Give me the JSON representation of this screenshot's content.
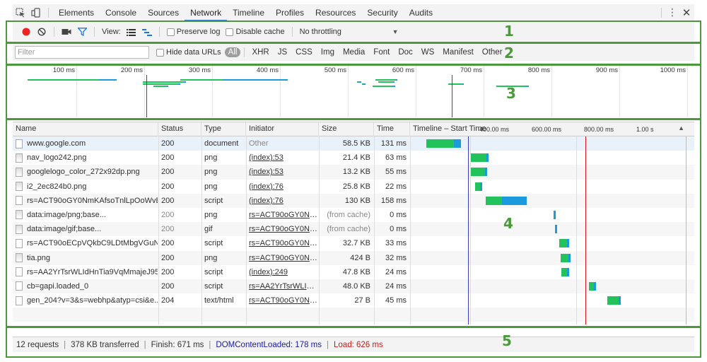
{
  "tabs": [
    "Elements",
    "Console",
    "Sources",
    "Network",
    "Timeline",
    "Profiles",
    "Resources",
    "Security",
    "Audits"
  ],
  "active_tab": "Network",
  "toolbar": {
    "view_label": "View:",
    "preserve_log": "Preserve log",
    "disable_cache": "Disable cache",
    "throttling": "No throttling"
  },
  "filter": {
    "placeholder": "Filter",
    "hide_data_urls": "Hide data URLs",
    "types": [
      "All",
      "XHR",
      "JS",
      "CSS",
      "Img",
      "Media",
      "Font",
      "Doc",
      "WS",
      "Manifest",
      "Other"
    ],
    "active": "All"
  },
  "overview": {
    "ticks": [
      "100 ms",
      "200 ms",
      "300 ms",
      "400 ms",
      "500 ms",
      "600 ms",
      "700 ms",
      "800 ms",
      "900 ms",
      "1000 ms"
    ]
  },
  "columns": {
    "name": "Name",
    "status": "Status",
    "type": "Type",
    "initiator": "Initiator",
    "size": "Size",
    "time": "Time",
    "timeline": "Timeline – Start Time",
    "timeline_ticks": [
      "400.00 ms",
      "600.00 ms",
      "800.00 ms",
      "1.00 s"
    ]
  },
  "rows": [
    {
      "name": "www.google.com",
      "status": "200",
      "type": "document",
      "initiator": "Other",
      "size": "58.5 KB",
      "time": "131 ms",
      "start_ms": 20,
      "wait_ms": 105,
      "recv_ms": 26
    },
    {
      "name": "nav_logo242.png",
      "status": "200",
      "type": "png",
      "initiator": "(index):53",
      "size": "21.4 KB",
      "time": "63 ms",
      "start_ms": 190,
      "wait_ms": 60,
      "recv_ms": 3
    },
    {
      "name": "googlelogo_color_272x92dp.png",
      "status": "200",
      "type": "png",
      "initiator": "(index):53",
      "size": "13.2 KB",
      "time": "55 ms",
      "start_ms": 190,
      "wait_ms": 52,
      "recv_ms": 3
    },
    {
      "name": "i2_2ec824b0.png",
      "status": "200",
      "type": "png",
      "initiator": "(index):76",
      "size": "25.8 KB",
      "time": "22 ms",
      "start_ms": 205,
      "wait_ms": 20,
      "recv_ms": 2
    },
    {
      "name": "rs=ACT90oGY0NmKAfsoTnlLpOoWvB...",
      "status": "200",
      "type": "script",
      "initiator": "(index):76",
      "size": "130 KB",
      "time": "158 ms",
      "start_ms": 245,
      "wait_ms": 62,
      "recv_ms": 96
    },
    {
      "name": "data:image/png;base...",
      "status": "200",
      "type": "png",
      "initiator": "rs=ACT90oGY0Nm...",
      "size": "(from cache)",
      "time": "0 ms",
      "start_ms": 505,
      "wait_ms": 0,
      "recv_ms": 4
    },
    {
      "name": "data:image/gif;base...",
      "status": "200",
      "type": "gif",
      "initiator": "rs=ACT90oGY0Nm...",
      "size": "(from cache)",
      "time": "0 ms",
      "start_ms": 512,
      "wait_ms": 0,
      "recv_ms": 4
    },
    {
      "name": "rs=ACT90oECpVQkbC9LDtMbgVGuN...",
      "status": "200",
      "type": "script",
      "initiator": "rs=ACT90oGY0Nm...",
      "size": "32.7 KB",
      "time": "33 ms",
      "start_ms": 528,
      "wait_ms": 30,
      "recv_ms": 3
    },
    {
      "name": "tia.png",
      "status": "200",
      "type": "png",
      "initiator": "rs=ACT90oGY0Nm...",
      "size": "424 B",
      "time": "32 ms",
      "start_ms": 532,
      "wait_ms": 30,
      "recv_ms": 2
    },
    {
      "name": "rs=AA2YrTsrWLIdHnTia9VqMmajeJ95...",
      "status": "200",
      "type": "script",
      "initiator": "(index):249",
      "size": "47.8 KB",
      "time": "24 ms",
      "start_ms": 536,
      "wait_ms": 22,
      "recv_ms": 2
    },
    {
      "name": "cb=gapi.loaded_0",
      "status": "200",
      "type": "script",
      "initiator": "rs=AA2YrTsrWLIdH...",
      "size": "48.0 KB",
      "time": "24 ms",
      "start_ms": 640,
      "wait_ms": 20,
      "recv_ms": 2
    },
    {
      "name": "gen_204?v=3&s=webhp&atyp=csi&e...",
      "status": "204",
      "type": "text/html",
      "initiator": "rs=ACT90oGY0Nm...",
      "size": "27 B",
      "time": "45 ms",
      "start_ms": 710,
      "wait_ms": 45,
      "recv_ms": 3
    }
  ],
  "footer": {
    "requests": "12 requests",
    "transferred": "378 KB transferred",
    "finish": "Finish: 671 ms",
    "dom_content_loaded": "DOMContentLoaded: 178 ms",
    "load": "Load: 626 ms"
  },
  "annotations": [
    "1",
    "2",
    "3",
    "4",
    "5"
  ],
  "colors": {
    "waiting": "#22c35b",
    "receiving": "#1b9bde",
    "dcl_line": "#3c3cc8",
    "load_line": "#d31515",
    "annotation": "#4a9a3c"
  }
}
